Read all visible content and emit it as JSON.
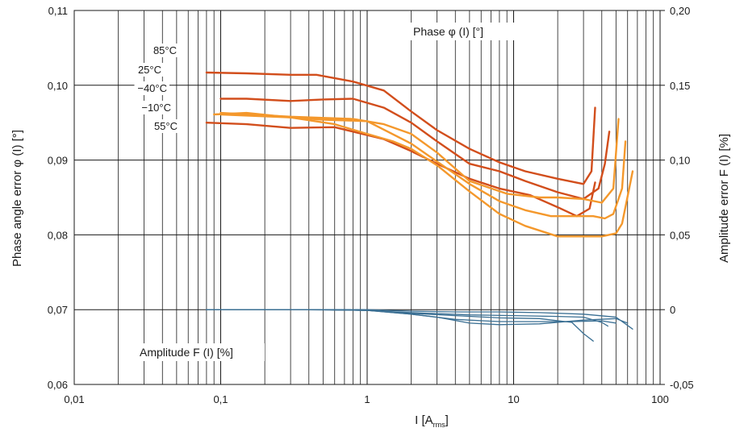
{
  "chart_data": {
    "type": "line",
    "xscale": "log",
    "xlim": [
      0.01,
      100
    ],
    "ylim": [
      0.06,
      0.11
    ],
    "y2lim": [
      -0.05,
      0.2
    ],
    "grid": "on",
    "x_ticks": [
      "0,01",
      "0,1",
      "1",
      "10",
      "100"
    ],
    "y_ticks": [
      "0,06",
      "0,07",
      "0,08",
      "0,09",
      "0,10",
      "0,11"
    ],
    "y2_ticks": [
      "-0,05",
      "0",
      "0,05",
      "0,10",
      "0,15",
      "0,20"
    ],
    "xlabel_main": "I [A",
    "xlabel_sub": "rms",
    "xlabel_end": "]",
    "ylabel": "Phase angle error φ (I) [°]",
    "y2label": "Amplitude error F (I) [%]",
    "phase_label": "Phase φ (I) [°]",
    "amplitude_label": "Amplitude F (I) [%]",
    "legend_labels": [
      "85°C",
      "25°C",
      "−40°C",
      "−10°C",
      "55°C"
    ],
    "series": [
      {
        "group": "phase",
        "color": "#d24e1c",
        "x": [
          0.08,
          0.15,
          0.3,
          0.45,
          0.8,
          1.3,
          2,
          3,
          5,
          8,
          12,
          20,
          30,
          34,
          36
        ],
        "y": [
          0.1017,
          0.1016,
          0.1014,
          0.1014,
          0.1005,
          0.0993,
          0.0965,
          0.094,
          0.0915,
          0.0897,
          0.0885,
          0.0875,
          0.0868,
          0.0885,
          0.097
        ]
      },
      {
        "group": "phase",
        "color": "#d24e1c",
        "x": [
          0.1,
          0.15,
          0.3,
          0.5,
          0.8,
          1.3,
          2,
          3,
          5,
          8,
          12,
          20,
          30,
          38,
          42,
          45
        ],
        "y": [
          0.0982,
          0.0982,
          0.0979,
          0.0981,
          0.0982,
          0.097,
          0.095,
          0.0925,
          0.0895,
          0.0885,
          0.0872,
          0.0857,
          0.0848,
          0.0862,
          0.0895,
          0.0938
        ]
      },
      {
        "group": "phase",
        "color": "#d24e1c",
        "x": [
          0.08,
          0.15,
          0.3,
          0.6,
          0.8,
          1.3,
          2,
          3,
          5,
          8,
          13,
          20,
          27,
          33,
          36
        ],
        "y": [
          0.095,
          0.0948,
          0.0943,
          0.0944,
          0.0938,
          0.0928,
          0.0912,
          0.0895,
          0.0875,
          0.0862,
          0.0853,
          0.0837,
          0.0825,
          0.0835,
          0.087
        ]
      },
      {
        "group": "phase",
        "color": "#f4982c",
        "x": [
          0.1,
          0.3,
          0.8,
          1.3,
          2,
          3,
          5,
          9,
          15,
          20,
          30,
          40,
          48,
          52
        ],
        "y": [
          0.0963,
          0.0958,
          0.0955,
          0.0948,
          0.0935,
          0.091,
          0.0872,
          0.0855,
          0.085,
          0.085,
          0.0848,
          0.0843,
          0.0862,
          0.0955
        ]
      },
      {
        "group": "phase",
        "color": "#f4982c",
        "x": [
          0.1,
          0.3,
          0.5,
          1,
          2,
          3,
          5,
          8,
          12,
          18,
          25,
          35,
          42,
          48,
          55,
          58
        ],
        "y": [
          0.0961,
          0.0957,
          0.0954,
          0.0952,
          0.0922,
          0.0898,
          0.0868,
          0.0845,
          0.0833,
          0.0825,
          0.0825,
          0.0825,
          0.0822,
          0.0828,
          0.0862,
          0.0925
        ]
      },
      {
        "group": "phase",
        "color": "#f4982c",
        "x": [
          0.09,
          0.15,
          0.3,
          0.6,
          1,
          1.5,
          2,
          3,
          5,
          8,
          12,
          20,
          30,
          40,
          50,
          55,
          62,
          65
        ],
        "y": [
          0.0961,
          0.0963,
          0.0957,
          0.0948,
          0.0935,
          0.0925,
          0.0915,
          0.0893,
          0.0858,
          0.0828,
          0.0812,
          0.0798,
          0.0798,
          0.0798,
          0.0802,
          0.0815,
          0.0865,
          0.0885
        ]
      },
      {
        "group": "amplitude",
        "color": "#3a6f93",
        "x": [
          0.08,
          0.3,
          1,
          2,
          4,
          8,
          15,
          25,
          30,
          35
        ],
        "y": [
          0.07,
          0.07,
          0.0699,
          0.0695,
          0.0692,
          0.0689,
          0.0688,
          0.0683,
          0.0668,
          0.0658
        ]
      },
      {
        "group": "amplitude",
        "color": "#3a6f93",
        "x": [
          0.08,
          0.5,
          1,
          2,
          5,
          10,
          20,
          30,
          40,
          44
        ],
        "y": [
          0.07,
          0.07,
          0.0699,
          0.0696,
          0.0693,
          0.0692,
          0.0691,
          0.069,
          0.0683,
          0.0678
        ]
      },
      {
        "group": "amplitude",
        "color": "#3a6f93",
        "x": [
          0.08,
          0.5,
          1,
          2,
          4,
          8,
          15,
          25,
          40,
          50
        ],
        "y": [
          0.07,
          0.07,
          0.0699,
          0.0694,
          0.0687,
          0.0684,
          0.0684,
          0.0684,
          0.0685,
          0.0682
        ]
      },
      {
        "group": "amplitude",
        "color": "#3a6f93",
        "x": [
          0.08,
          0.5,
          1,
          2,
          3,
          5,
          8,
          15,
          30,
          50,
          60
        ],
        "y": [
          0.07,
          0.07,
          0.0699,
          0.0694,
          0.069,
          0.0682,
          0.068,
          0.0681,
          0.0686,
          0.0688,
          0.0682
        ]
      },
      {
        "group": "amplitude",
        "color": "#3a6f93",
        "x": [
          0.08,
          0.5,
          1,
          2,
          4,
          8,
          15,
          30,
          50,
          65
        ],
        "y": [
          0.07,
          0.07,
          0.07,
          0.0698,
          0.0697,
          0.0697,
          0.0696,
          0.0694,
          0.069,
          0.0674
        ]
      }
    ]
  }
}
